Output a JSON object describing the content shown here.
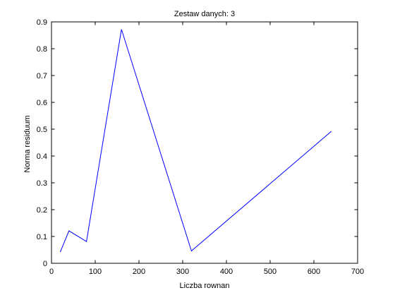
{
  "chart_data": {
    "type": "line",
    "title": "Zestaw danych: 3",
    "xlabel": "Liczba rownan",
    "ylabel": "Norma residuum",
    "xlim": [
      0,
      700
    ],
    "ylim": [
      0,
      0.9
    ],
    "xticks": [
      0,
      100,
      200,
      300,
      400,
      500,
      600,
      700
    ],
    "yticks": [
      0,
      0.1,
      0.2,
      0.3,
      0.4,
      0.5,
      0.6,
      0.7,
      0.8,
      0.9
    ],
    "grid": false,
    "series": [
      {
        "color": "#0000ff",
        "x": [
          20,
          40,
          80,
          160,
          320,
          640
        ],
        "y": [
          0.042,
          0.121,
          0.081,
          0.872,
          0.046,
          0.492
        ]
      }
    ]
  }
}
